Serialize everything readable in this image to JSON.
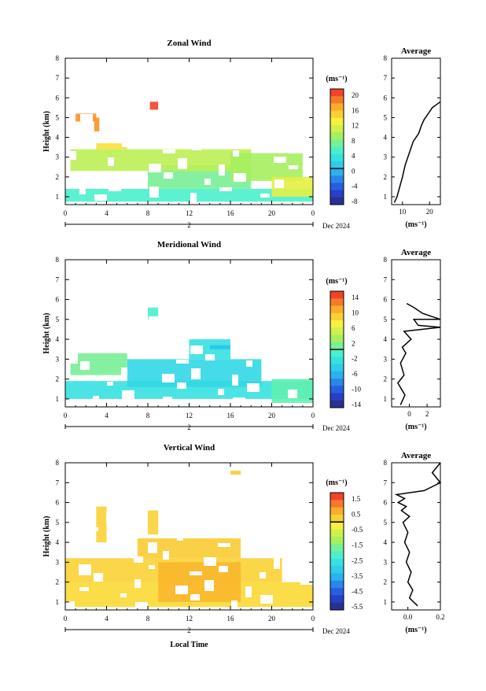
{
  "time_ticks": [
    "0",
    "4",
    "8",
    "12",
    "16",
    "20",
    "0"
  ],
  "height_ticks": [
    "1",
    "2",
    "3",
    "4",
    "5",
    "6",
    "7",
    "8"
  ],
  "day_label": "2",
  "month_label": "Dec 2024",
  "ylabel": "Height (km)",
  "xlabel": "Local Time",
  "unit_label": "(ms⁻¹)",
  "avg_title": "Average",
  "panels": [
    {
      "title": "Zonal Wind",
      "colorbar_ticks": [
        "20",
        "16",
        "12",
        "8",
        "4",
        "0",
        "-4",
        "-8"
      ],
      "avg_xticks": [
        "10",
        "20"
      ],
      "avg_xrange": [
        6,
        24
      ],
      "chart_data": {
        "type": "heatmap",
        "title": "Zonal Wind",
        "ylabel": "Height (km)",
        "xlim_hours": [
          0,
          24
        ],
        "ylim_km": [
          0.6,
          8
        ],
        "colorbar_range": [
          -10,
          22
        ],
        "cells": [
          {
            "t0": 0,
            "t1": 24,
            "h0": 0.75,
            "h1": 1.4,
            "v": 5
          },
          {
            "t0": 8,
            "t1": 18,
            "h0": 1.4,
            "h1": 2.6,
            "v": 7
          },
          {
            "t0": 0.5,
            "t1": 18,
            "h0": 2.3,
            "h1": 3.4,
            "v": 10
          },
          {
            "t0": 16,
            "t1": 23,
            "h0": 1.8,
            "h1": 3.2,
            "v": 9
          },
          {
            "t0": 20,
            "t1": 24,
            "h0": 1.0,
            "h1": 2.0,
            "v": 12
          },
          {
            "t0": 1,
            "t1": 3,
            "h0": 4.8,
            "h1": 5.2,
            "v": 18
          },
          {
            "t0": 2.8,
            "t1": 3.3,
            "h0": 4.3,
            "h1": 5.0,
            "v": 18
          },
          {
            "t0": 8.2,
            "t1": 9,
            "h0": 5.4,
            "h1": 5.8,
            "v": 21
          },
          {
            "t0": 3,
            "t1": 6,
            "h0": 3.4,
            "h1": 3.7,
            "v": 14
          }
        ]
      },
      "avg_profile": {
        "x": [
          7,
          8,
          9,
          10,
          11,
          12,
          13,
          14,
          16,
          17,
          18,
          19,
          20,
          21,
          22,
          24
        ],
        "y": [
          0.7,
          1.0,
          1.5,
          2.0,
          2.6,
          3.0,
          3.4,
          3.8,
          4.2,
          4.6,
          4.9,
          5.1,
          5.3,
          5.5,
          5.6,
          5.8
        ]
      }
    },
    {
      "title": "Meridional Wind",
      "colorbar_ticks": [
        "14",
        "10",
        "6",
        "2",
        "-2",
        "-6",
        "-10",
        "-14"
      ],
      "avg_xticks": [
        "0",
        "2"
      ],
      "avg_xrange": [
        -2,
        3.5
      ],
      "chart_data": {
        "type": "heatmap",
        "title": "Meridional Wind",
        "ylabel": "Height (km)",
        "xlim_hours": [
          0,
          24
        ],
        "ylim_km": [
          0.6,
          8
        ],
        "colorbar_range": [
          -16,
          16
        ],
        "cells": [
          {
            "t0": 0,
            "t1": 24,
            "h0": 1.0,
            "h1": 1.9,
            "v": -3
          },
          {
            "t0": 6,
            "t1": 19,
            "h0": 1.6,
            "h1": 3.0,
            "v": -4
          },
          {
            "t0": 0.5,
            "t1": 6,
            "h0": 2.2,
            "h1": 3.3,
            "v": 1
          },
          {
            "t0": 12,
            "t1": 16,
            "h0": 3.0,
            "h1": 4.0,
            "v": -3
          },
          {
            "t0": 20,
            "t1": 24,
            "h0": 0.8,
            "h1": 2.0,
            "v": 0
          },
          {
            "t0": 14,
            "t1": 16,
            "h0": 3.5,
            "h1": 3.7,
            "v": -6
          },
          {
            "t0": 8,
            "t1": 9,
            "h0": 5.0,
            "h1": 5.6,
            "v": -1
          }
        ]
      },
      "avg_profile": {
        "x": [
          -1,
          -0.5,
          -1.3,
          -0.6,
          -1.0,
          -0.4,
          -0.8,
          0.2,
          -0.6,
          3.5,
          1.0,
          0.5,
          3.5,
          1.5,
          0.5,
          -0.3
        ],
        "y": [
          0.7,
          1.2,
          1.8,
          2.2,
          2.8,
          3.3,
          3.6,
          4.0,
          4.4,
          4.6,
          4.7,
          5.0,
          5.0,
          5.3,
          5.6,
          5.8
        ]
      }
    },
    {
      "title": "Vertical Wind",
      "colorbar_ticks": [
        "1.5",
        "0.5",
        "-0.5",
        "-1.5",
        "-2.5",
        "-3.5",
        "-4.5",
        "-5.5"
      ],
      "avg_xticks": [
        "0.0",
        "0.2"
      ],
      "avg_xrange": [
        -0.1,
        0.2
      ],
      "chart_data": {
        "type": "heatmap",
        "title": "Vertical Wind",
        "ylabel": "Height (km)",
        "xlim_hours": [
          0,
          24
        ],
        "ylim_km": [
          0.6,
          8
        ],
        "colorbar_range": [
          -6,
          2
        ],
        "cells": [
          {
            "t0": 0,
            "t1": 24,
            "h0": 0.75,
            "h1": 2.0,
            "v": 0.1
          },
          {
            "t0": 0,
            "t1": 21,
            "h0": 2.0,
            "h1": 3.2,
            "v": 0.2
          },
          {
            "t0": 7,
            "t1": 17,
            "h0": 3.2,
            "h1": 4.2,
            "v": 0.3
          },
          {
            "t0": 9,
            "t1": 17,
            "h0": 1.0,
            "h1": 3.0,
            "v": 0.6
          },
          {
            "t0": 3,
            "t1": 4,
            "h0": 4.0,
            "h1": 5.8,
            "v": 0.2
          },
          {
            "t0": 8,
            "t1": 9,
            "h0": 4.4,
            "h1": 5.6,
            "v": 0.2
          },
          {
            "t0": 16,
            "t1": 17,
            "h0": 7.4,
            "h1": 7.6,
            "v": 0.3
          }
        ]
      },
      "avg_profile": {
        "x": [
          0.06,
          0.01,
          0.03,
          0.0,
          0.02,
          -0.01,
          0.01,
          -0.02,
          0.0,
          -0.03,
          0.01,
          -0.04,
          -0.01,
          -0.06,
          -0.02,
          -0.07,
          0.1,
          0.2,
          0.15,
          0.2
        ],
        "y": [
          0.8,
          1.2,
          1.6,
          2.0,
          2.5,
          3.0,
          3.5,
          4.0,
          4.5,
          5.0,
          5.3,
          5.6,
          5.8,
          6.0,
          6.2,
          6.4,
          6.6,
          7.0,
          7.5,
          8.0
        ]
      }
    }
  ]
}
